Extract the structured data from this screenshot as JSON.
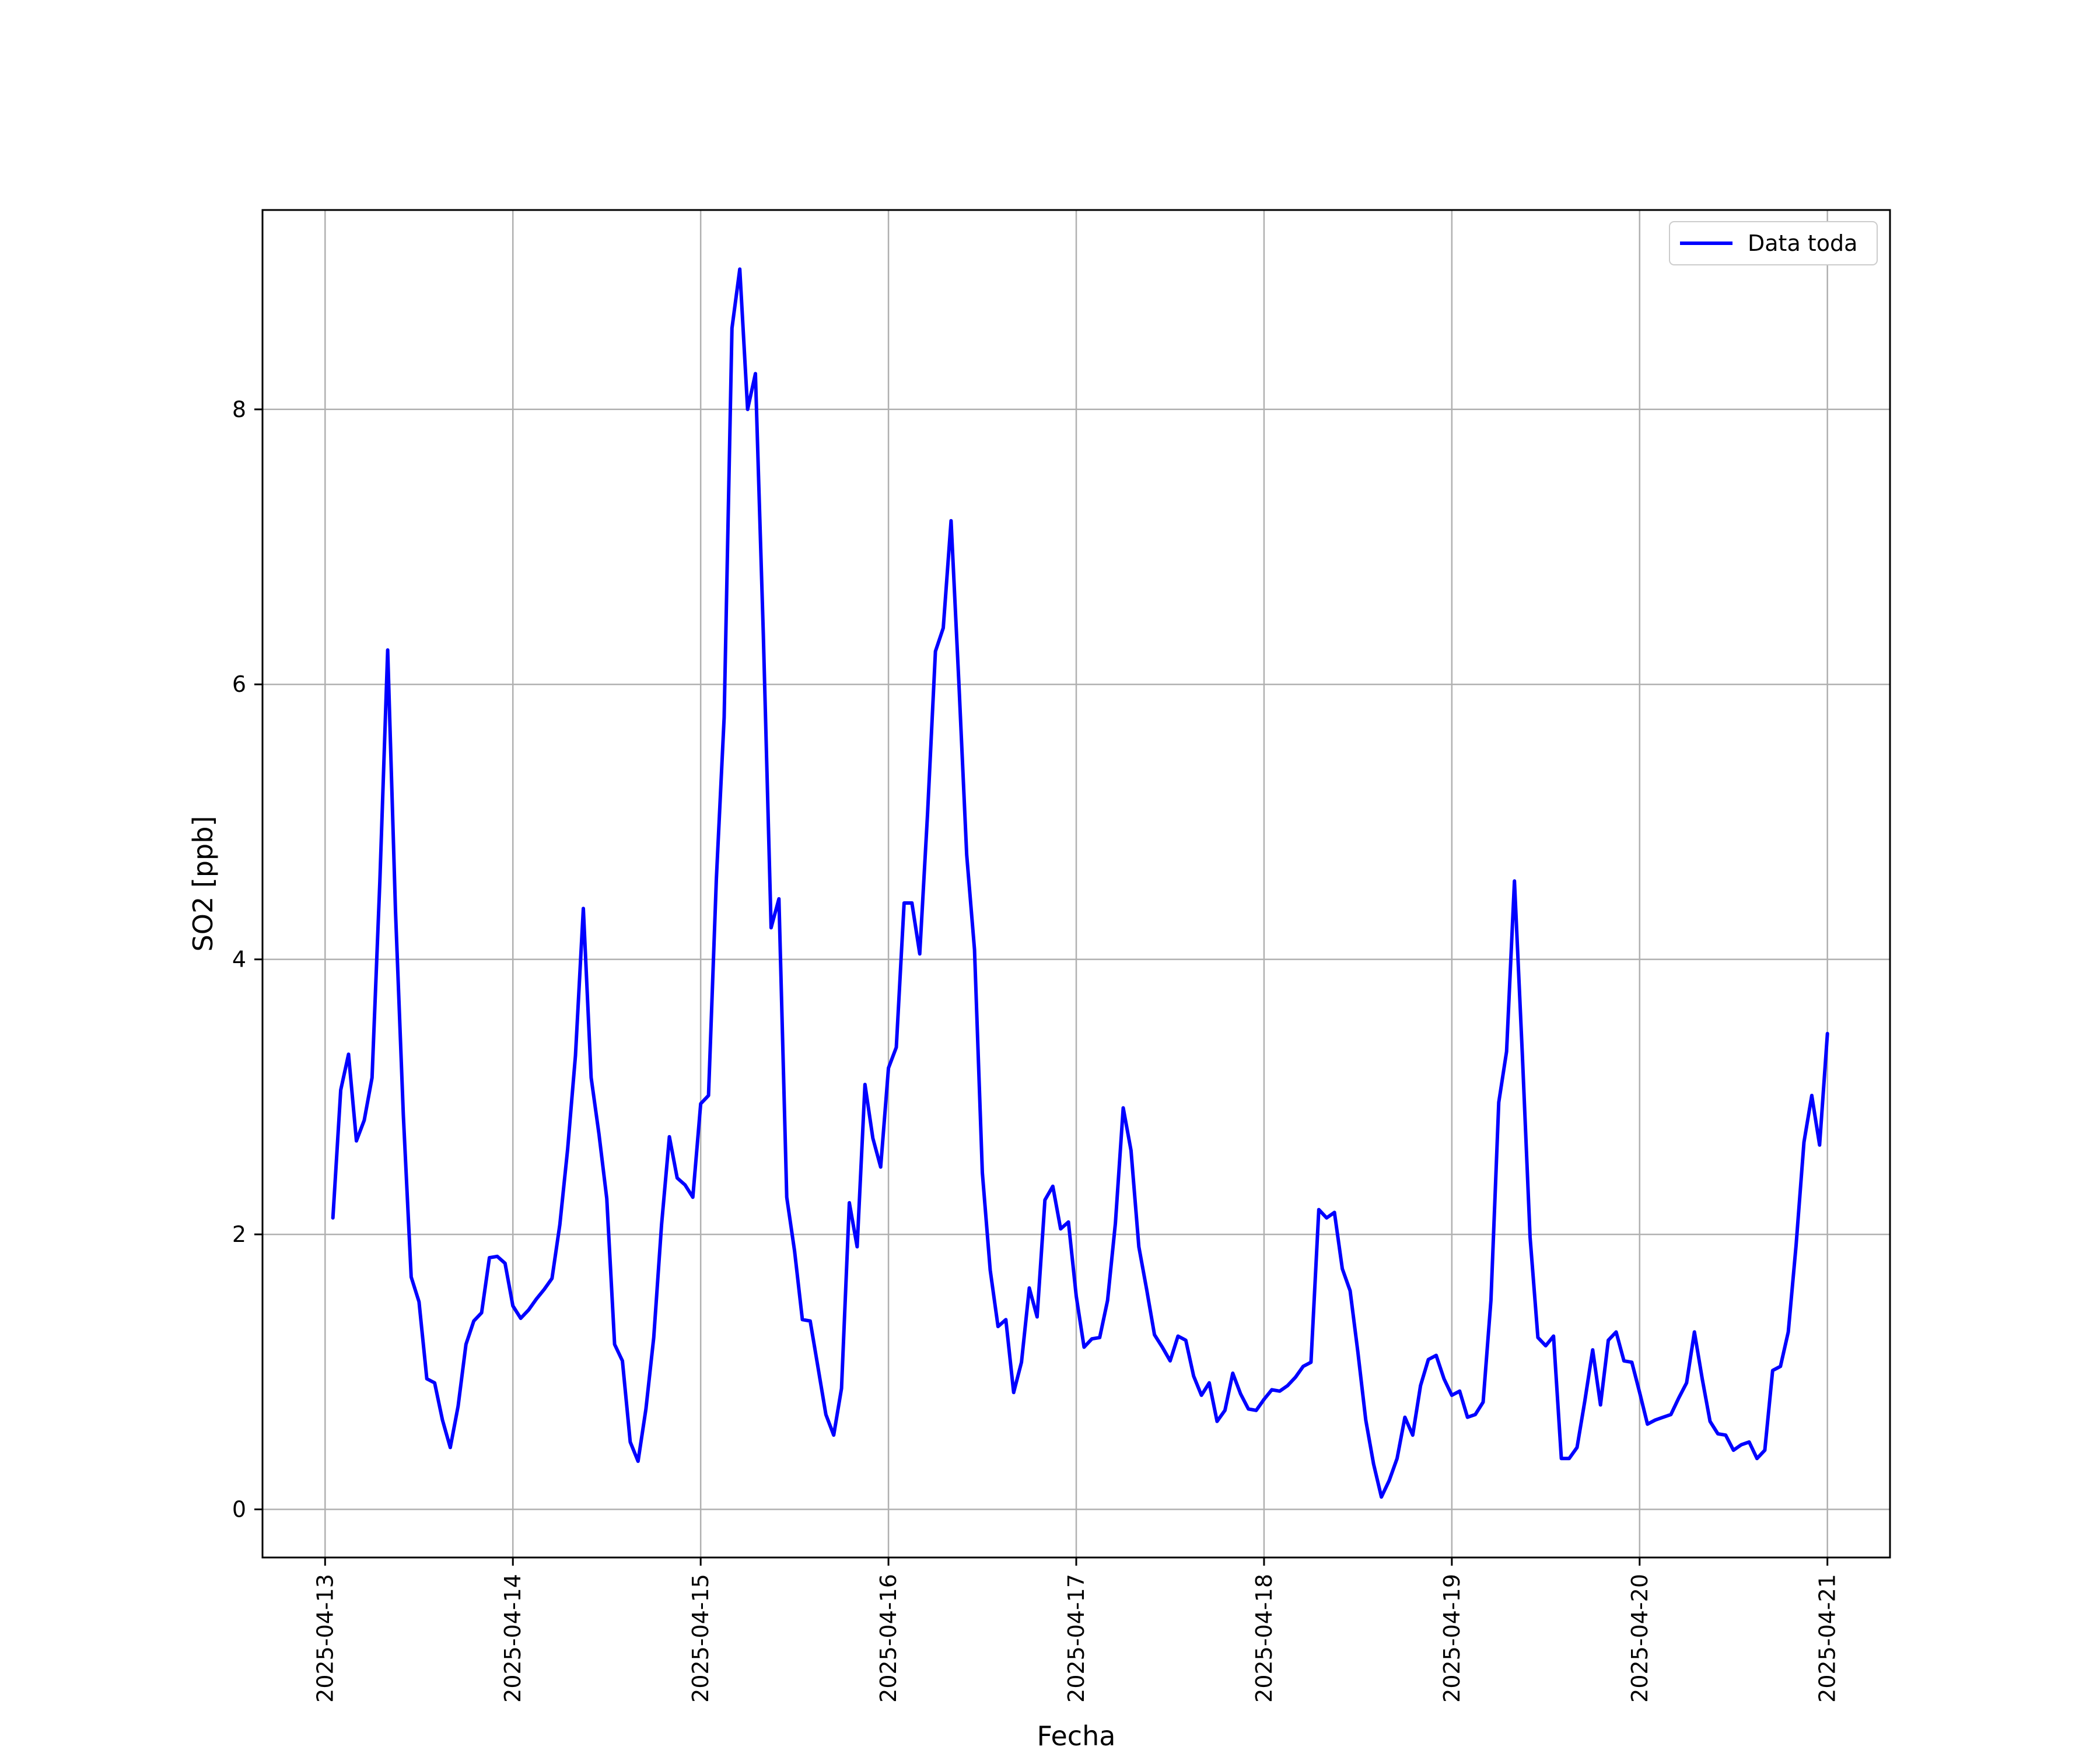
{
  "chart_data": {
    "type": "line",
    "title": "",
    "xlabel": "Fecha",
    "ylabel": "SO2 [ppb]",
    "xlim": [
      "2025-04-12 16:00",
      "2025-04-21 08:00"
    ],
    "ylim": [
      -0.35,
      9.45
    ],
    "grid": true,
    "legend_position": "top-right",
    "x_ticks": [
      "2025-04-13",
      "2025-04-14",
      "2025-04-15",
      "2025-04-16",
      "2025-04-17",
      "2025-04-18",
      "2025-04-19",
      "2025-04-20",
      "2025-04-21"
    ],
    "y_ticks": [
      "0",
      "2",
      "4",
      "6",
      "8"
    ],
    "series": [
      {
        "name": "Data toda",
        "color": "#0000ff",
        "x_start": "2025-04-13 01:00",
        "x_step_hours": 1,
        "values": [
          2.12,
          3.05,
          3.31,
          2.68,
          2.83,
          3.14,
          4.57,
          6.25,
          4.35,
          2.87,
          1.69,
          1.51,
          0.95,
          0.92,
          0.65,
          0.45,
          0.75,
          1.2,
          1.37,
          1.43,
          1.83,
          1.84,
          1.79,
          1.48,
          1.39,
          1.45,
          1.53,
          1.6,
          1.68,
          2.07,
          2.62,
          3.3,
          4.37,
          3.14,
          2.73,
          2.26,
          1.2,
          1.08,
          0.49,
          0.35,
          0.73,
          1.25,
          2.07,
          2.71,
          2.41,
          2.36,
          2.27,
          2.95,
          3.01,
          4.58,
          5.76,
          8.59,
          9.02,
          8.0,
          8.26,
          6.37,
          4.23,
          4.44,
          2.27,
          1.88,
          1.38,
          1.37,
          1.03,
          0.69,
          0.54,
          0.88,
          2.23,
          1.91,
          3.09,
          2.7,
          2.49,
          3.21,
          3.36,
          4.41,
          4.41,
          4.04,
          5.06,
          6.24,
          6.41,
          7.19,
          6.01,
          4.76,
          4.07,
          2.45,
          1.74,
          1.33,
          1.38,
          0.85,
          1.07,
          1.61,
          1.4,
          2.25,
          2.35,
          2.04,
          2.09,
          1.55,
          1.18,
          1.24,
          1.25,
          1.52,
          2.08,
          2.92,
          2.61,
          1.91,
          1.6,
          1.27,
          1.18,
          1.08,
          1.26,
          1.23,
          0.97,
          0.83,
          0.92,
          0.64,
          0.72,
          0.99,
          0.84,
          0.73,
          0.72,
          0.8,
          0.87,
          0.86,
          0.9,
          0.96,
          1.04,
          1.07,
          2.18,
          2.12,
          2.16,
          1.75,
          1.59,
          1.14,
          0.65,
          0.33,
          0.09,
          0.21,
          0.37,
          0.67,
          0.54,
          0.9,
          1.09,
          1.12,
          0.95,
          0.83,
          0.86,
          0.67,
          0.69,
          0.78,
          1.52,
          2.96,
          3.33,
          4.57,
          3.32,
          1.98,
          1.25,
          1.19,
          1.26,
          0.37,
          0.37,
          0.45,
          0.79,
          1.16,
          0.76,
          1.23,
          1.29,
          1.08,
          1.07,
          0.85,
          0.62,
          0.65,
          0.67,
          0.69,
          0.81,
          0.92,
          1.29,
          0.95,
          0.64,
          0.55,
          0.54,
          0.43,
          0.47,
          0.49,
          0.37,
          0.43,
          1.01,
          1.04,
          1.29,
          1.92,
          2.67,
          3.01,
          2.65,
          3.46
        ]
      }
    ]
  }
}
